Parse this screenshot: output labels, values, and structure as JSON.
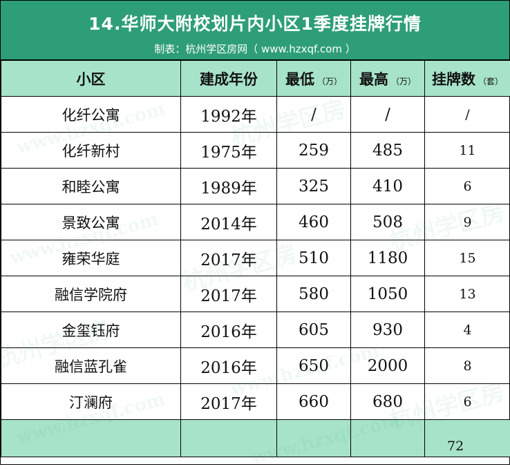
{
  "header": {
    "title": "14.华师大附校划片内小区1季度挂牌行情",
    "subtitle": "制表：杭州学区房网（ www.hzxqf.com ）"
  },
  "columns": {
    "community": "小区",
    "year": "建成年份",
    "min": "最低",
    "min_unit": "（万）",
    "max": "最高",
    "max_unit": "（万）",
    "count": "挂牌数",
    "count_unit": "（套）"
  },
  "rows": [
    {
      "community": "化纤公寓",
      "year": "1992年",
      "min": "/",
      "max": "/",
      "count": "/"
    },
    {
      "community": "化纤新村",
      "year": "1975年",
      "min": "259",
      "max": "485",
      "count": "11"
    },
    {
      "community": "和睦公寓",
      "year": "1989年",
      "min": "325",
      "max": "410",
      "count": "6"
    },
    {
      "community": "景致公寓",
      "year": "2014年",
      "min": "460",
      "max": "508",
      "count": "9"
    },
    {
      "community": "雍荣华庭",
      "year": "2017年",
      "min": "510",
      "max": "1180",
      "count": "15"
    },
    {
      "community": "融信学院府",
      "year": "2017年",
      "min": "580",
      "max": "1050",
      "count": "13"
    },
    {
      "community": "金玺钰府",
      "year": "2016年",
      "min": "605",
      "max": "930",
      "count": "4"
    },
    {
      "community": "融信蓝孔雀",
      "year": "2016年",
      "min": "650",
      "max": "2000",
      "count": "8"
    },
    {
      "community": "汀澜府",
      "year": "2017年",
      "min": "660",
      "max": "680",
      "count": "6"
    }
  ],
  "total": {
    "count": "72"
  },
  "watermark": {
    "text_cn": "杭州学区房",
    "text_url": "www.hzxqf.com"
  },
  "colors": {
    "banner": "#2e9e78",
    "header_fill": "#a7e3c9"
  }
}
